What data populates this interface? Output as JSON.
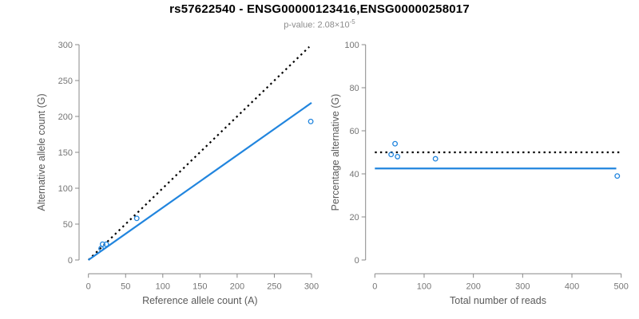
{
  "header": {
    "title": "rs57622540 - ENSG00000123416,ENSG00000258017",
    "pvalue_prefix": "p-value: 2.08×10",
    "pvalue_exponent": "-5"
  },
  "colors": {
    "accent_blue": "#2185DE",
    "identity_black": "#000000",
    "axis_line_gray": "#888888",
    "tick_label_gray": "#757575",
    "axis_title_gray": "#5a5a5a",
    "background": "#ffffff"
  },
  "chart_data": [
    {
      "type": "scatter",
      "title": "rs57622540 - ENSG00000123416,ENSG00000258017",
      "subtitle": "p-value: 2.08x10^-5",
      "xlabel": "Reference allele count (A)",
      "ylabel": "Alternative allele count (G)",
      "xlim": [
        0,
        300
      ],
      "ylim": [
        0,
        300
      ],
      "xticks": [
        0,
        50,
        100,
        150,
        200,
        250,
        300
      ],
      "yticks": [
        0,
        50,
        100,
        150,
        200,
        250,
        300
      ],
      "grid": false,
      "marker": "open-circle",
      "points": [
        {
          "x": 17,
          "y": 16
        },
        {
          "x": 19,
          "y": 22
        },
        {
          "x": 24,
          "y": 22
        },
        {
          "x": 65,
          "y": 58
        },
        {
          "x": 299,
          "y": 193
        }
      ],
      "lines": [
        {
          "name": "identity-line",
          "style": "dotted",
          "color": "#000000",
          "from": [
            0,
            0
          ],
          "to": [
            297,
            297
          ]
        },
        {
          "name": "fit-line",
          "style": "solid",
          "color": "#2185DE",
          "from": [
            0,
            0
          ],
          "to": [
            300,
            219
          ]
        }
      ]
    },
    {
      "type": "scatter",
      "xlabel": "Total number of reads",
      "ylabel": "Percentage alternative (G)",
      "xlim": [
        0,
        500
      ],
      "ylim": [
        0,
        100
      ],
      "xticks": [
        0,
        100,
        200,
        300,
        400,
        500
      ],
      "yticks": [
        0,
        20,
        40,
        60,
        80,
        100
      ],
      "grid": false,
      "marker": "open-circle",
      "points": [
        {
          "x": 33,
          "y": 49
        },
        {
          "x": 41,
          "y": 54
        },
        {
          "x": 46,
          "y": 48
        },
        {
          "x": 123,
          "y": 47
        },
        {
          "x": 492,
          "y": 39
        }
      ],
      "lines": [
        {
          "name": "expected-50pct-line",
          "style": "dotted",
          "color": "#000000",
          "from": [
            0,
            50
          ],
          "to": [
            500,
            50
          ]
        },
        {
          "name": "observed-ratio-line",
          "style": "solid",
          "color": "#2185DE",
          "from": [
            0,
            42.5
          ],
          "to": [
            490,
            42.5
          ]
        }
      ]
    }
  ]
}
